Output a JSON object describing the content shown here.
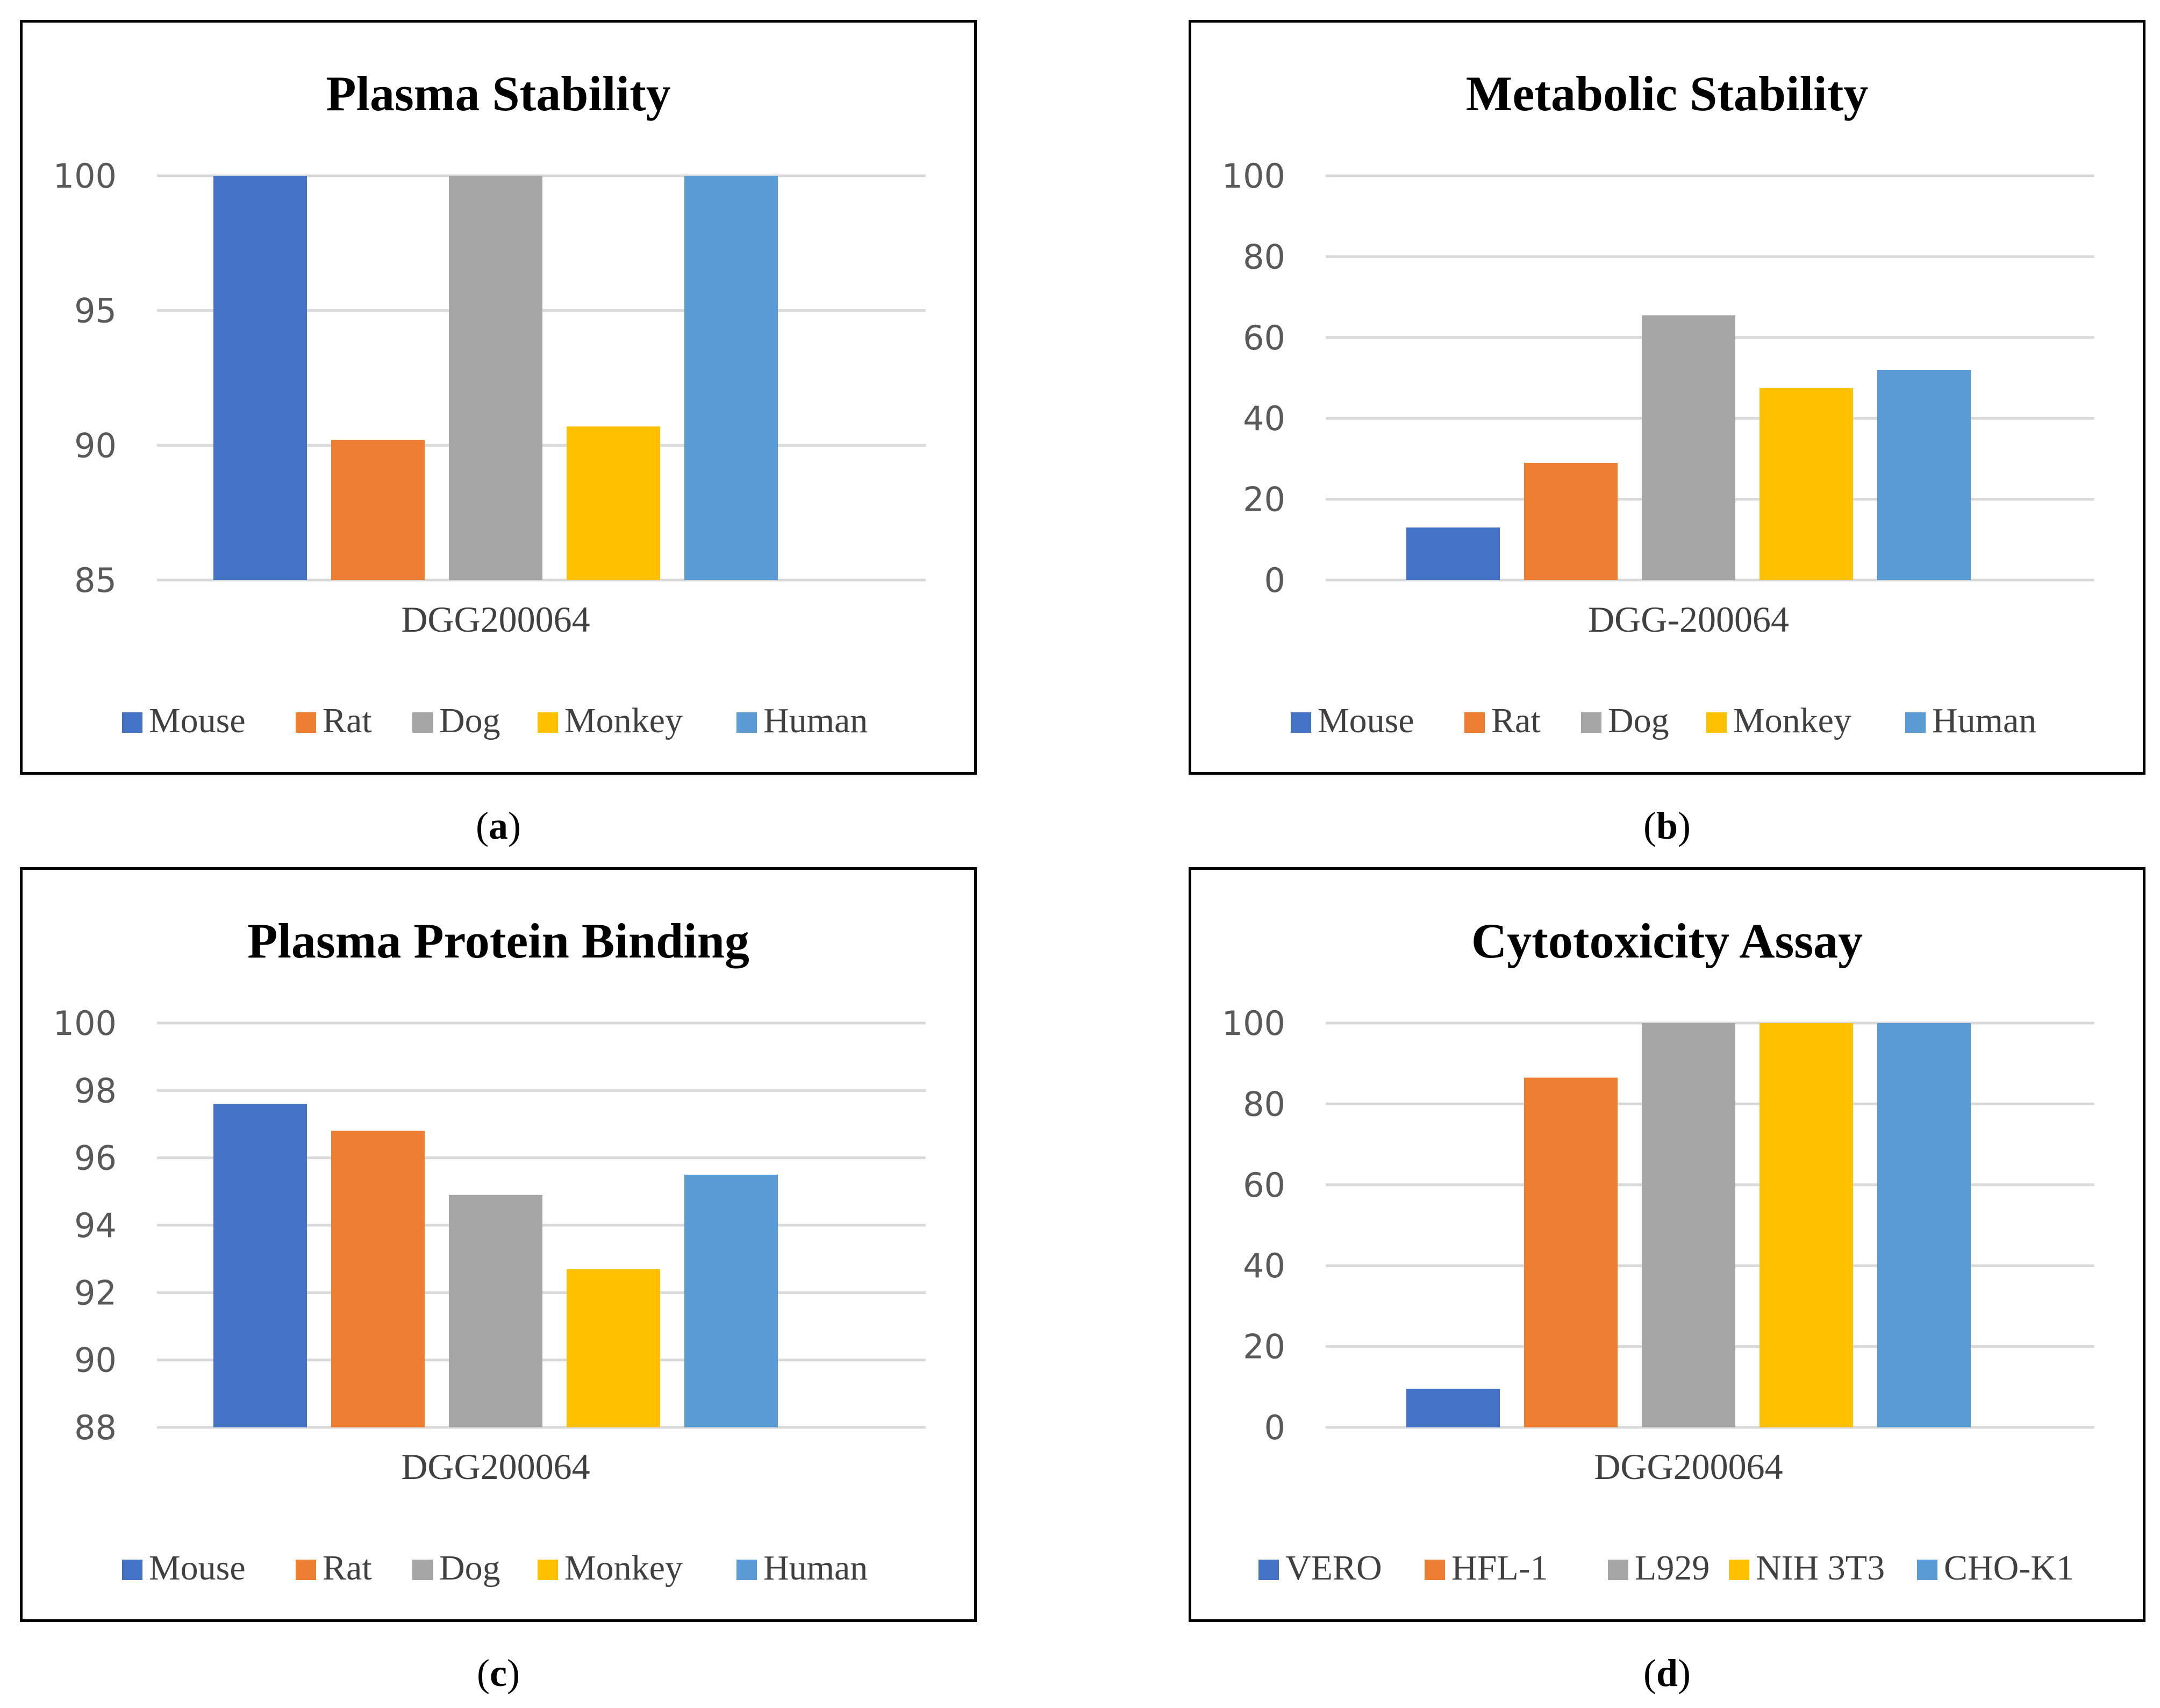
{
  "panels": [
    {
      "caption_letter": "a",
      "chart_data": {
        "type": "bar",
        "title": "Plasma Stability",
        "categories": [
          "DGG200064"
        ],
        "series": [
          {
            "name": "Mouse",
            "values": [
              100
            ],
            "color": "#4472C4"
          },
          {
            "name": "Rat",
            "values": [
              90.2
            ],
            "color": "#ED7D31"
          },
          {
            "name": "Dog",
            "values": [
              100
            ],
            "color": "#A5A5A5"
          },
          {
            "name": "Monkey",
            "values": [
              90.7
            ],
            "color": "#FFC000"
          },
          {
            "name": "Human",
            "values": [
              100
            ],
            "color": "#5B9BD5"
          }
        ],
        "ylim": [
          85,
          100
        ],
        "yticks": [
          85,
          90,
          95,
          100
        ],
        "grid": true,
        "legend": "bottom"
      }
    },
    {
      "caption_letter": "b",
      "chart_data": {
        "type": "bar",
        "title": "Metabolic Stability",
        "categories": [
          "DGG-200064"
        ],
        "series": [
          {
            "name": "Mouse",
            "values": [
              13
            ],
            "color": "#4472C4"
          },
          {
            "name": "Rat",
            "values": [
              29
            ],
            "color": "#ED7D31"
          },
          {
            "name": "Dog",
            "values": [
              65.5
            ],
            "color": "#A5A5A5"
          },
          {
            "name": "Monkey",
            "values": [
              47.5
            ],
            "color": "#FFC000"
          },
          {
            "name": "Human",
            "values": [
              52
            ],
            "color": "#5B9BD5"
          }
        ],
        "ylim": [
          0,
          100
        ],
        "yticks": [
          0,
          20,
          40,
          60,
          80,
          100
        ],
        "grid": true,
        "legend": "bottom"
      }
    },
    {
      "caption_letter": "c",
      "chart_data": {
        "type": "bar",
        "title": "Plasma Protein Binding",
        "categories": [
          "DGG200064"
        ],
        "series": [
          {
            "name": "Mouse",
            "values": [
              97.6
            ],
            "color": "#4472C4"
          },
          {
            "name": "Rat",
            "values": [
              96.8
            ],
            "color": "#ED7D31"
          },
          {
            "name": "Dog",
            "values": [
              94.9
            ],
            "color": "#A5A5A5"
          },
          {
            "name": "Monkey",
            "values": [
              92.7
            ],
            "color": "#FFC000"
          },
          {
            "name": "Human",
            "values": [
              95.5
            ],
            "color": "#5B9BD5"
          }
        ],
        "ylim": [
          88,
          100
        ],
        "yticks": [
          88,
          90,
          92,
          94,
          96,
          98,
          100
        ],
        "grid": true,
        "legend": "bottom"
      }
    },
    {
      "caption_letter": "d",
      "chart_data": {
        "type": "bar",
        "title": "Cytotoxicity Assay",
        "categories": [
          "DGG200064"
        ],
        "series": [
          {
            "name": "VERO",
            "values": [
              9.5
            ],
            "color": "#4472C4"
          },
          {
            "name": "HFL-1",
            "values": [
              86.5
            ],
            "color": "#ED7D31"
          },
          {
            "name": "L929",
            "values": [
              100
            ],
            "color": "#A5A5A5"
          },
          {
            "name": "NIH 3T3",
            "values": [
              100
            ],
            "color": "#FFC000"
          },
          {
            "name": "CHO-K1",
            "values": [
              100
            ],
            "color": "#5B9BD5"
          }
        ],
        "ylim": [
          0,
          100
        ],
        "yticks": [
          0,
          20,
          40,
          60,
          80,
          100
        ],
        "grid": true,
        "legend": "bottom"
      }
    }
  ]
}
